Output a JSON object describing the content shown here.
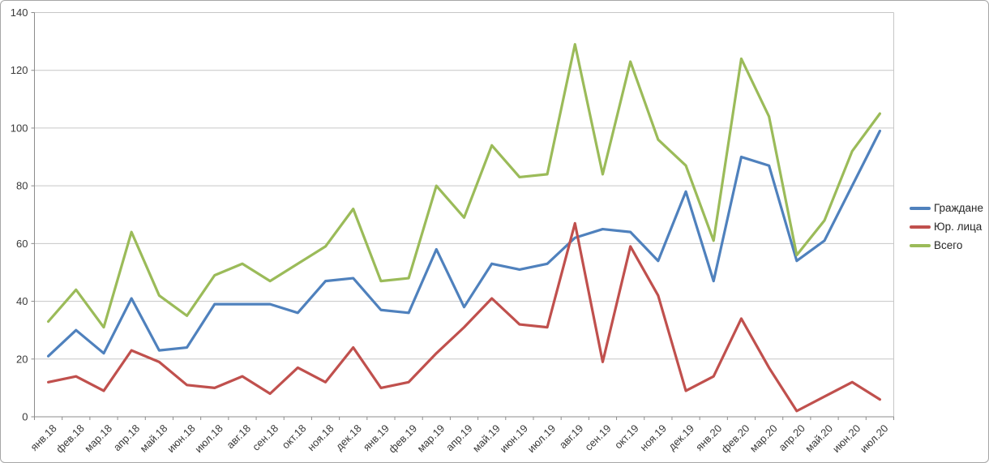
{
  "chart_data": {
    "type": "line",
    "title": "",
    "xlabel": "",
    "ylabel": "",
    "categories": [
      "янв.18",
      "фев.18",
      "мар.18",
      "апр.18",
      "май.18",
      "июн.18",
      "июл.18",
      "авг.18",
      "сен.18",
      "окт.18",
      "ноя.18",
      "дек.18",
      "янв.19",
      "фев.19",
      "мар.19",
      "апр.19",
      "май.19",
      "июн.19",
      "июл.19",
      "авг.19",
      "сен.19",
      "окт.19",
      "ноя.19",
      "дек.19",
      "янв.20",
      "фев.20",
      "мар.20",
      "апр.20",
      "май.20",
      "июн.20",
      "июл.20"
    ],
    "series": [
      {
        "key": "citizens",
        "name": "Граждане",
        "color": "#4F81BD",
        "values": [
          21,
          30,
          22,
          41,
          23,
          24,
          39,
          39,
          39,
          36,
          47,
          48,
          37,
          36,
          58,
          38,
          53,
          51,
          53,
          62,
          65,
          64,
          54,
          78,
          47,
          90,
          87,
          54,
          61,
          80,
          99
        ]
      },
      {
        "key": "legal-entities",
        "name": "Юр. лица",
        "color": "#C0504D",
        "values": [
          12,
          14,
          9,
          23,
          19,
          11,
          10,
          14,
          8,
          17,
          12,
          24,
          10,
          12,
          22,
          31,
          41,
          32,
          31,
          67,
          19,
          59,
          42,
          9,
          14,
          34,
          17,
          2,
          7,
          12,
          6
        ]
      },
      {
        "key": "total",
        "name": "Всего",
        "color": "#9BBB59",
        "values": [
          33,
          44,
          31,
          64,
          42,
          35,
          49,
          53,
          47,
          53,
          59,
          72,
          47,
          48,
          80,
          69,
          94,
          83,
          84,
          129,
          84,
          123,
          96,
          87,
          61,
          124,
          104,
          56,
          68,
          92,
          105
        ]
      }
    ],
    "ylim": [
      0,
      140
    ],
    "yticks": [
      0,
      20,
      40,
      60,
      80,
      100,
      120,
      140
    ],
    "grid": true,
    "legend_position": "right",
    "x_label_rotation": -45
  },
  "colors": {
    "background": "#FFFFFF",
    "grid": "#C6C6C6",
    "axis": "#8C8C8C",
    "tick_text": "#3A3A3A",
    "frame": "#A6A6A6"
  }
}
